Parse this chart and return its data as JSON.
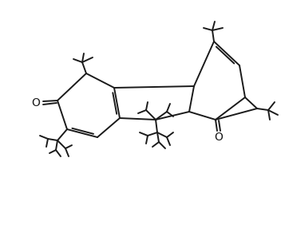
{
  "bg_color": "#ffffff",
  "line_color": "#1a1a1a",
  "line_width": 1.4,
  "font_size": 9.5,
  "figsize": [
    3.52,
    2.82
  ],
  "dpi": 100
}
